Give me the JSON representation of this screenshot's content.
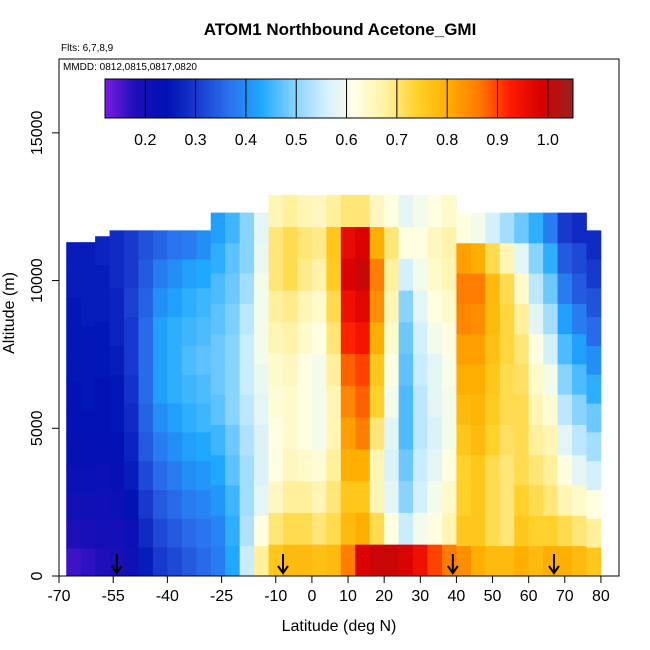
{
  "chart_data": {
    "type": "heatmap",
    "title": "ATOM1 Northbound Acetone_GMI",
    "flights_note": "Flts: 6,7,8,9",
    "dates_note": "MMDD: 0812,0815,0817,0820",
    "xlabel": "Latitude (deg N)",
    "ylabel": "Altitude (m)",
    "xlim": [
      -70,
      85
    ],
    "ylim": [
      0,
      17500
    ],
    "x_ticks": [
      -70,
      -55,
      -40,
      -25,
      -10,
      0,
      10,
      20,
      30,
      40,
      50,
      60,
      70,
      80
    ],
    "y_ticks": [
      0,
      5000,
      10000,
      15000
    ],
    "colorbar": {
      "range": [
        0.12,
        1.05
      ],
      "ticks": [
        0.2,
        0.3,
        0.4,
        0.5,
        0.6,
        0.7,
        0.8,
        0.9,
        1.0
      ],
      "tick_labels": [
        "0.2",
        "0.3",
        "0.4",
        "0.5",
        "0.6",
        "0.7",
        "0.8",
        "0.9",
        "1.0"
      ],
      "colors": [
        "#7b19e6",
        "#1c0fb8",
        "#0012b4",
        "#1a3dd0",
        "#2a72ee",
        "#1ea8ff",
        "#7fd0ff",
        "#cfeeff",
        "#ffffe4",
        "#fff1a0",
        "#ffd12a",
        "#ffae00",
        "#ff7a00",
        "#ff1a00",
        "#d40000",
        "#992222"
      ]
    },
    "profile_columns": [
      {
        "lat": -66,
        "top_alt": 11300,
        "values": [
          0.16,
          0.18,
          0.2,
          0.22,
          0.23,
          0.24,
          0.24,
          0.25,
          0.25,
          0.25,
          0.26,
          0.26
        ]
      },
      {
        "lat": -62,
        "top_alt": 11300,
        "values": [
          0.17,
          0.19,
          0.21,
          0.22,
          0.23,
          0.24,
          0.25,
          0.25,
          0.25,
          0.26,
          0.26,
          0.26
        ]
      },
      {
        "lat": -58,
        "top_alt": 11500,
        "values": [
          0.18,
          0.2,
          0.21,
          0.22,
          0.23,
          0.24,
          0.24,
          0.25,
          0.25,
          0.26,
          0.26,
          0.27
        ]
      },
      {
        "lat": -54,
        "top_alt": 11700,
        "values": [
          0.19,
          0.2,
          0.22,
          0.23,
          0.24,
          0.25,
          0.25,
          0.26,
          0.27,
          0.27,
          0.28,
          0.28
        ]
      },
      {
        "lat": -50,
        "top_alt": 11700,
        "values": [
          0.21,
          0.22,
          0.24,
          0.26,
          0.27,
          0.28,
          0.29,
          0.3,
          0.3,
          0.31,
          0.3,
          0.3
        ]
      },
      {
        "lat": -46,
        "top_alt": 11700,
        "values": [
          0.26,
          0.28,
          0.3,
          0.32,
          0.34,
          0.35,
          0.36,
          0.36,
          0.36,
          0.35,
          0.34,
          0.33
        ]
      },
      {
        "lat": -42,
        "top_alt": 11700,
        "values": [
          0.3,
          0.32,
          0.34,
          0.36,
          0.38,
          0.4,
          0.42,
          0.42,
          0.42,
          0.4,
          0.38,
          0.35
        ]
      },
      {
        "lat": -38,
        "top_alt": 11700,
        "values": [
          0.32,
          0.34,
          0.36,
          0.38,
          0.4,
          0.42,
          0.44,
          0.44,
          0.44,
          0.42,
          0.4,
          0.37
        ]
      },
      {
        "lat": -34,
        "top_alt": 11700,
        "values": [
          0.34,
          0.36,
          0.38,
          0.4,
          0.42,
          0.44,
          0.45,
          0.46,
          0.45,
          0.44,
          0.42,
          0.38
        ]
      },
      {
        "lat": -30,
        "top_alt": 11700,
        "values": [
          0.36,
          0.37,
          0.39,
          0.41,
          0.43,
          0.45,
          0.46,
          0.47,
          0.46,
          0.45,
          0.43,
          0.4
        ]
      },
      {
        "lat": -26,
        "top_alt": 12300,
        "values": [
          0.38,
          0.39,
          0.41,
          0.43,
          0.45,
          0.47,
          0.48,
          0.48,
          0.47,
          0.46,
          0.44,
          0.42
        ]
      },
      {
        "lat": -22,
        "top_alt": 12300,
        "values": [
          0.43,
          0.44,
          0.45,
          0.47,
          0.48,
          0.5,
          0.5,
          0.5,
          0.49,
          0.48,
          0.47,
          0.45
        ]
      },
      {
        "lat": -18,
        "top_alt": 12300,
        "values": [
          0.55,
          0.53,
          0.52,
          0.52,
          0.53,
          0.54,
          0.55,
          0.55,
          0.54,
          0.52,
          0.5,
          0.5
        ]
      },
      {
        "lat": -14,
        "top_alt": 12300,
        "values": [
          0.68,
          0.62,
          0.58,
          0.57,
          0.57,
          0.58,
          0.59,
          0.6,
          0.6,
          0.6,
          0.59,
          0.58
        ]
      },
      {
        "lat": -10,
        "top_alt": 12900,
        "values": [
          0.76,
          0.7,
          0.65,
          0.62,
          0.62,
          0.63,
          0.64,
          0.66,
          0.68,
          0.7,
          0.7,
          0.66
        ]
      },
      {
        "lat": -6,
        "top_alt": 12900,
        "values": [
          0.78,
          0.72,
          0.68,
          0.65,
          0.64,
          0.64,
          0.65,
          0.67,
          0.69,
          0.72,
          0.72,
          0.68
        ]
      },
      {
        "lat": -2,
        "top_alt": 12900,
        "values": [
          0.78,
          0.72,
          0.68,
          0.64,
          0.62,
          0.62,
          0.62,
          0.64,
          0.66,
          0.69,
          0.7,
          0.66
        ]
      },
      {
        "lat": 2,
        "top_alt": 12900,
        "values": [
          0.77,
          0.7,
          0.66,
          0.63,
          0.6,
          0.6,
          0.6,
          0.62,
          0.64,
          0.67,
          0.69,
          0.65
        ]
      },
      {
        "lat": 6,
        "top_alt": 12900,
        "values": [
          0.78,
          0.72,
          0.7,
          0.68,
          0.66,
          0.66,
          0.68,
          0.7,
          0.72,
          0.75,
          0.76,
          0.68
        ]
      },
      {
        "lat": 10,
        "top_alt": 12900,
        "values": [
          0.86,
          0.78,
          0.76,
          0.8,
          0.82,
          0.85,
          0.88,
          0.92,
          0.95,
          0.98,
          0.96,
          0.7
        ]
      },
      {
        "lat": 14,
        "top_alt": 12900,
        "values": [
          0.98,
          0.8,
          0.76,
          0.8,
          0.86,
          0.88,
          0.9,
          0.94,
          0.97,
          1.0,
          0.98,
          0.7
        ]
      },
      {
        "lat": 18,
        "top_alt": 12900,
        "values": [
          1.0,
          0.72,
          0.66,
          0.66,
          0.7,
          0.74,
          0.76,
          0.8,
          0.84,
          0.86,
          0.8,
          0.65
        ]
      },
      {
        "lat": 22,
        "top_alt": 12900,
        "values": [
          1.0,
          0.62,
          0.58,
          0.57,
          0.58,
          0.6,
          0.62,
          0.64,
          0.66,
          0.68,
          0.7,
          0.62
        ]
      },
      {
        "lat": 26,
        "top_alt": 12900,
        "values": [
          0.98,
          0.55,
          0.5,
          0.48,
          0.46,
          0.46,
          0.47,
          0.48,
          0.5,
          0.56,
          0.62,
          0.58
        ]
      },
      {
        "lat": 30,
        "top_alt": 12900,
        "values": [
          0.95,
          0.6,
          0.56,
          0.55,
          0.54,
          0.54,
          0.55,
          0.56,
          0.58,
          0.6,
          0.62,
          0.6
        ]
      },
      {
        "lat": 34,
        "top_alt": 12900,
        "values": [
          0.9,
          0.62,
          0.6,
          0.58,
          0.57,
          0.58,
          0.58,
          0.6,
          0.62,
          0.64,
          0.65,
          0.62
        ]
      },
      {
        "lat": 38,
        "top_alt": 12900,
        "values": [
          0.86,
          0.66,
          0.64,
          0.62,
          0.6,
          0.6,
          0.61,
          0.62,
          0.64,
          0.66,
          0.67,
          0.64
        ]
      },
      {
        "lat": 42,
        "top_alt": 12300,
        "values": [
          0.84,
          0.76,
          0.74,
          0.74,
          0.76,
          0.78,
          0.8,
          0.82,
          0.85,
          0.86,
          0.82,
          0.62
        ]
      },
      {
        "lat": 46,
        "top_alt": 12300,
        "values": [
          0.8,
          0.76,
          0.76,
          0.76,
          0.78,
          0.79,
          0.8,
          0.82,
          0.84,
          0.86,
          0.8,
          0.6
        ]
      },
      {
        "lat": 50,
        "top_alt": 12300,
        "values": [
          0.78,
          0.72,
          0.72,
          0.72,
          0.74,
          0.75,
          0.76,
          0.77,
          0.78,
          0.78,
          0.72,
          0.56
        ]
      },
      {
        "lat": 54,
        "top_alt": 12300,
        "values": [
          0.78,
          0.7,
          0.7,
          0.7,
          0.71,
          0.72,
          0.72,
          0.73,
          0.73,
          0.72,
          0.66,
          0.52
        ]
      },
      {
        "lat": 58,
        "top_alt": 12300,
        "values": [
          0.8,
          0.76,
          0.74,
          0.72,
          0.72,
          0.72,
          0.71,
          0.7,
          0.68,
          0.64,
          0.58,
          0.48
        ]
      },
      {
        "lat": 62,
        "top_alt": 12300,
        "values": [
          0.78,
          0.74,
          0.72,
          0.7,
          0.68,
          0.66,
          0.64,
          0.62,
          0.58,
          0.54,
          0.5,
          0.44
        ]
      },
      {
        "lat": 66,
        "top_alt": 12300,
        "values": [
          0.8,
          0.74,
          0.7,
          0.68,
          0.66,
          0.63,
          0.6,
          0.56,
          0.52,
          0.48,
          0.44,
          0.38
        ]
      },
      {
        "lat": 70,
        "top_alt": 12300,
        "values": [
          0.8,
          0.72,
          0.66,
          0.62,
          0.58,
          0.54,
          0.5,
          0.46,
          0.42,
          0.38,
          0.34,
          0.3
        ]
      },
      {
        "lat": 74,
        "top_alt": 12300,
        "values": [
          0.78,
          0.7,
          0.64,
          0.58,
          0.54,
          0.5,
          0.46,
          0.42,
          0.38,
          0.34,
          0.32,
          0.28
        ]
      },
      {
        "lat": 78,
        "top_alt": 11700,
        "values": [
          0.76,
          0.68,
          0.62,
          0.56,
          0.52,
          0.48,
          0.44,
          0.4,
          0.36,
          0.33,
          0.3,
          0.28
        ]
      }
    ],
    "profile_locations_lat": [
      -54,
      -8,
      39,
      67
    ],
    "grid": false
  }
}
